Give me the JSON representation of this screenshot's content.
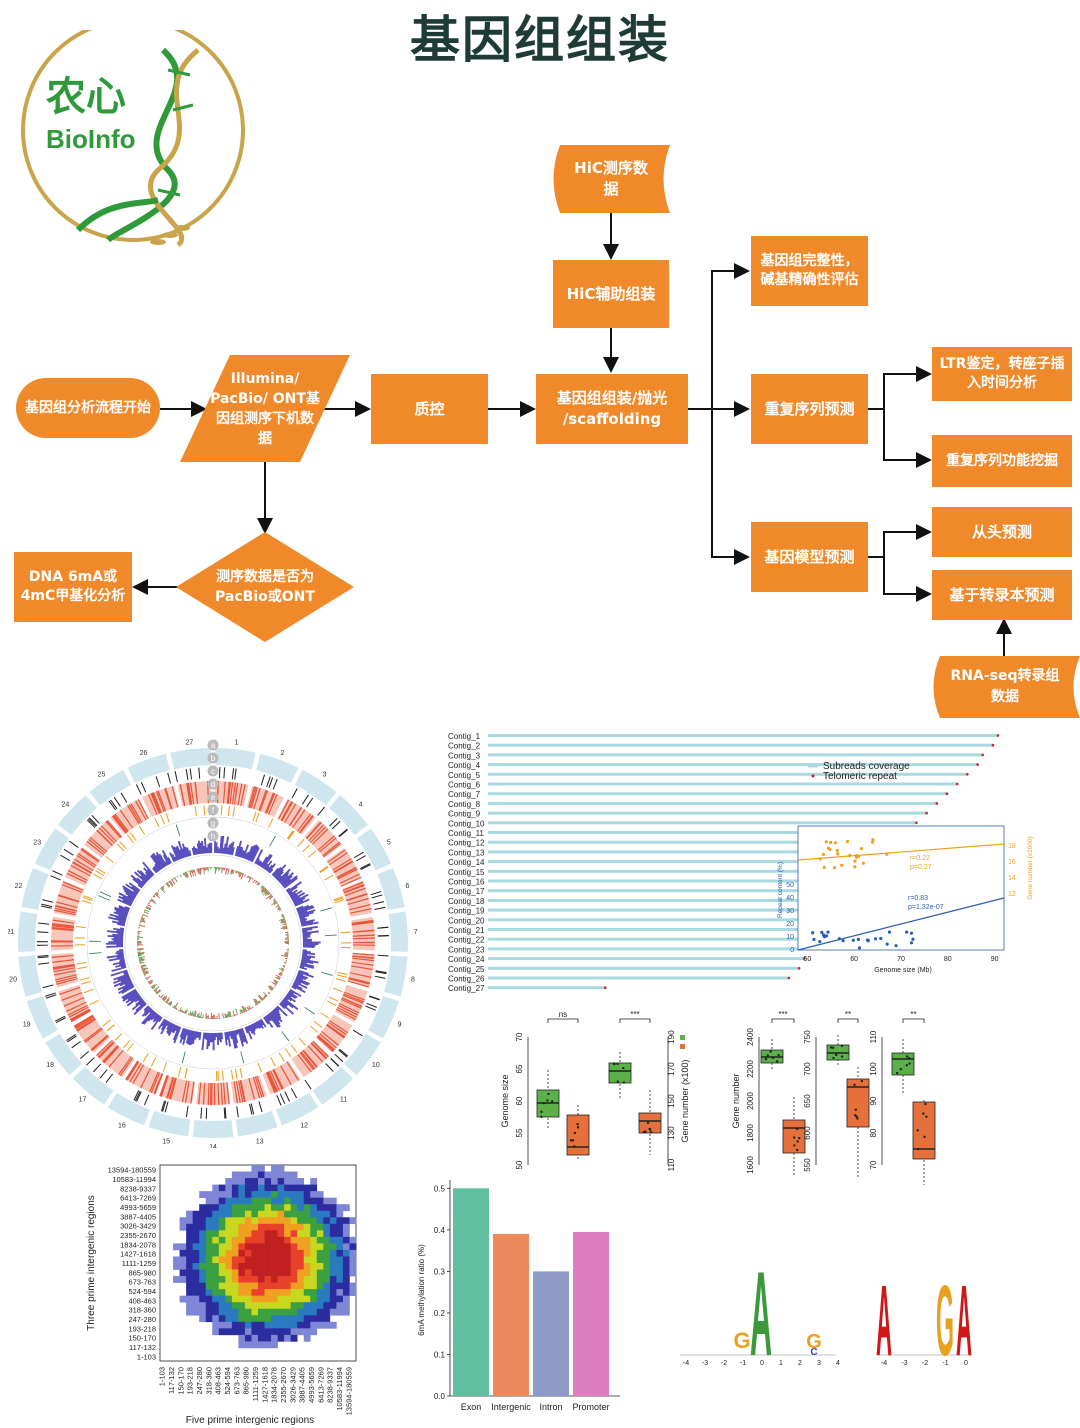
{
  "title": "基因组组装",
  "logo": {
    "cn": "农心",
    "en": "BioInfo"
  },
  "flow": {
    "start": "基因组分析流程开始",
    "seq_data": "Illumina/ PacBio/ ONT基因组测序下机数据",
    "qc": "质控",
    "assembly": "基因组组装/抛光 /scaffolding",
    "hic_data": "HiC测序数据",
    "hic_assist": "HiC辅助组装",
    "eval": "基因组完整性，碱基精确性评估",
    "repeat": "重复序列预测",
    "ltr": "LTR鉴定，转座子插入时间分析",
    "repeat_func": "重复序列功能挖掘",
    "gene_model": "基因模型预测",
    "denovo": "从头预测",
    "transcript": "基于转录本预测",
    "rnaseq": "RNA-seq转录组数据",
    "decision": "测序数据是否为PacBio或ONT",
    "methyl": "DNA 6mA或4mC甲基化分析"
  },
  "circos": {
    "track_letters": [
      "a",
      "b",
      "c",
      "d",
      "e",
      "f",
      "g",
      "h"
    ],
    "chromosomes": [
      "1",
      "2",
      "3",
      "4",
      "5",
      "6",
      "7",
      "8",
      "9",
      "10",
      "11",
      "12",
      "13",
      "14",
      "15",
      "16",
      "17",
      "18",
      "19",
      "20",
      "21",
      "22",
      "23",
      "24",
      "25",
      "26",
      "27"
    ]
  },
  "contigs": {
    "labels": [
      "Contig_1",
      "Contig_2",
      "Contig_3",
      "Contig_4",
      "Contig_5",
      "Contig_6",
      "Contig_7",
      "Contig_8",
      "Contig_9",
      "Contig_10",
      "Contig_11",
      "Contig_12",
      "Contig_13",
      "Contig_14",
      "Contig_15",
      "Contig_16",
      "Contig_17",
      "Contig_18",
      "Contig_19",
      "Contig_20",
      "Contig_21",
      "Contig_22",
      "Contig_23",
      "Contig_24",
      "Contig_25",
      "Contig_26",
      "Contig_27"
    ],
    "lengths": [
      100,
      99,
      97,
      96,
      94,
      92,
      90,
      88,
      86,
      84,
      82,
      80,
      78,
      77,
      75,
      74,
      72,
      70,
      69,
      68,
      66,
      64,
      63,
      62,
      61,
      59,
      23
    ],
    "legend": [
      "Subreads coverage",
      "Telomeric repeat"
    ],
    "colors": {
      "coverage": "#a8d8e0",
      "telomere": "#d42020"
    }
  },
  "scatter": {
    "xlabel": "Genome size (Mb)",
    "ylabel_left": "Repeat content (%)",
    "ylabel_right": "Gene number (x1000)",
    "x_ticks": [
      "50",
      "60",
      "70",
      "80",
      "90"
    ],
    "y_left_ticks": [
      "0",
      "10",
      "20",
      "30",
      "40",
      "50"
    ],
    "y_right_ticks": [
      "12",
      "14",
      "16",
      "18"
    ],
    "orange_stats": [
      "r=0.22",
      "p=0.27"
    ],
    "blue_stats": [
      "r=0.83",
      "p=1.32e-07"
    ]
  },
  "boxplots": {
    "genome_size": {
      "ylabel": "Genome size",
      "ticks": [
        "50",
        "55",
        "60",
        "65",
        "70"
      ],
      "sig": "ns"
    },
    "gene_number_x100": {
      "ylabel": "Gene number (x100)",
      "ticks": [
        "110",
        "130",
        "150",
        "170",
        "190"
      ],
      "sig": "***"
    },
    "gene_number": {
      "ylabel": "Gene number",
      "ticks": [
        "1600",
        "1800",
        "2000",
        "2200",
        "2400"
      ],
      "sig": "***"
    },
    "p2": {
      "ticks": [
        "550",
        "600",
        "650",
        "700",
        "750"
      ],
      "sig": "**"
    },
    "p3": {
      "ticks": [
        "70",
        "80",
        "90",
        "100",
        "110"
      ],
      "sig": "**"
    }
  },
  "heatmap": {
    "xlabel": "Five prime intergenic regions",
    "ylabel": "Three prime intergenic regions",
    "bins": [
      "1-103",
      "117-132",
      "150-170",
      "193-218",
      "247-280",
      "318-360",
      "408-463",
      "524-594",
      "673-763",
      "865-980",
      "1111-1259",
      "1427-1618",
      "1834-2078",
      "2355-2670",
      "3026-3429",
      "3887-4405",
      "4993-5659",
      "6413-7269",
      "8238-9337",
      "10583-11994",
      "13594-180559"
    ]
  },
  "bar_chart": {
    "ylabel": "6mA methylation ratio (%)",
    "y_ticks": [
      "0.0",
      "0.1",
      "0.2",
      "0.3",
      "0.4",
      "0.5"
    ]
  },
  "chart_data": {
    "type": "bar",
    "categories": [
      "Exon",
      "Intergenic",
      "Intron",
      "Promoter"
    ],
    "values": [
      0.5,
      0.39,
      0.3,
      0.395
    ],
    "colors": [
      "#5fbf9f",
      "#ec8a5c",
      "#8e9bc9",
      "#e07cc0"
    ],
    "title": "",
    "xlabel": "",
    "ylabel": "6mA methylation ratio (%)",
    "ylim": [
      0,
      0.52
    ]
  },
  "motif": {
    "left_ticks": [
      "-4",
      "-3",
      "-2",
      "-1",
      "0",
      "1",
      "2",
      "3",
      "4"
    ],
    "right_ticks": [
      "-4",
      "-3",
      "-2",
      "-1",
      "0"
    ],
    "left_letters": [
      "G",
      "A",
      "G",
      "C"
    ],
    "right_letters": [
      "A",
      "G",
      "A"
    ]
  }
}
